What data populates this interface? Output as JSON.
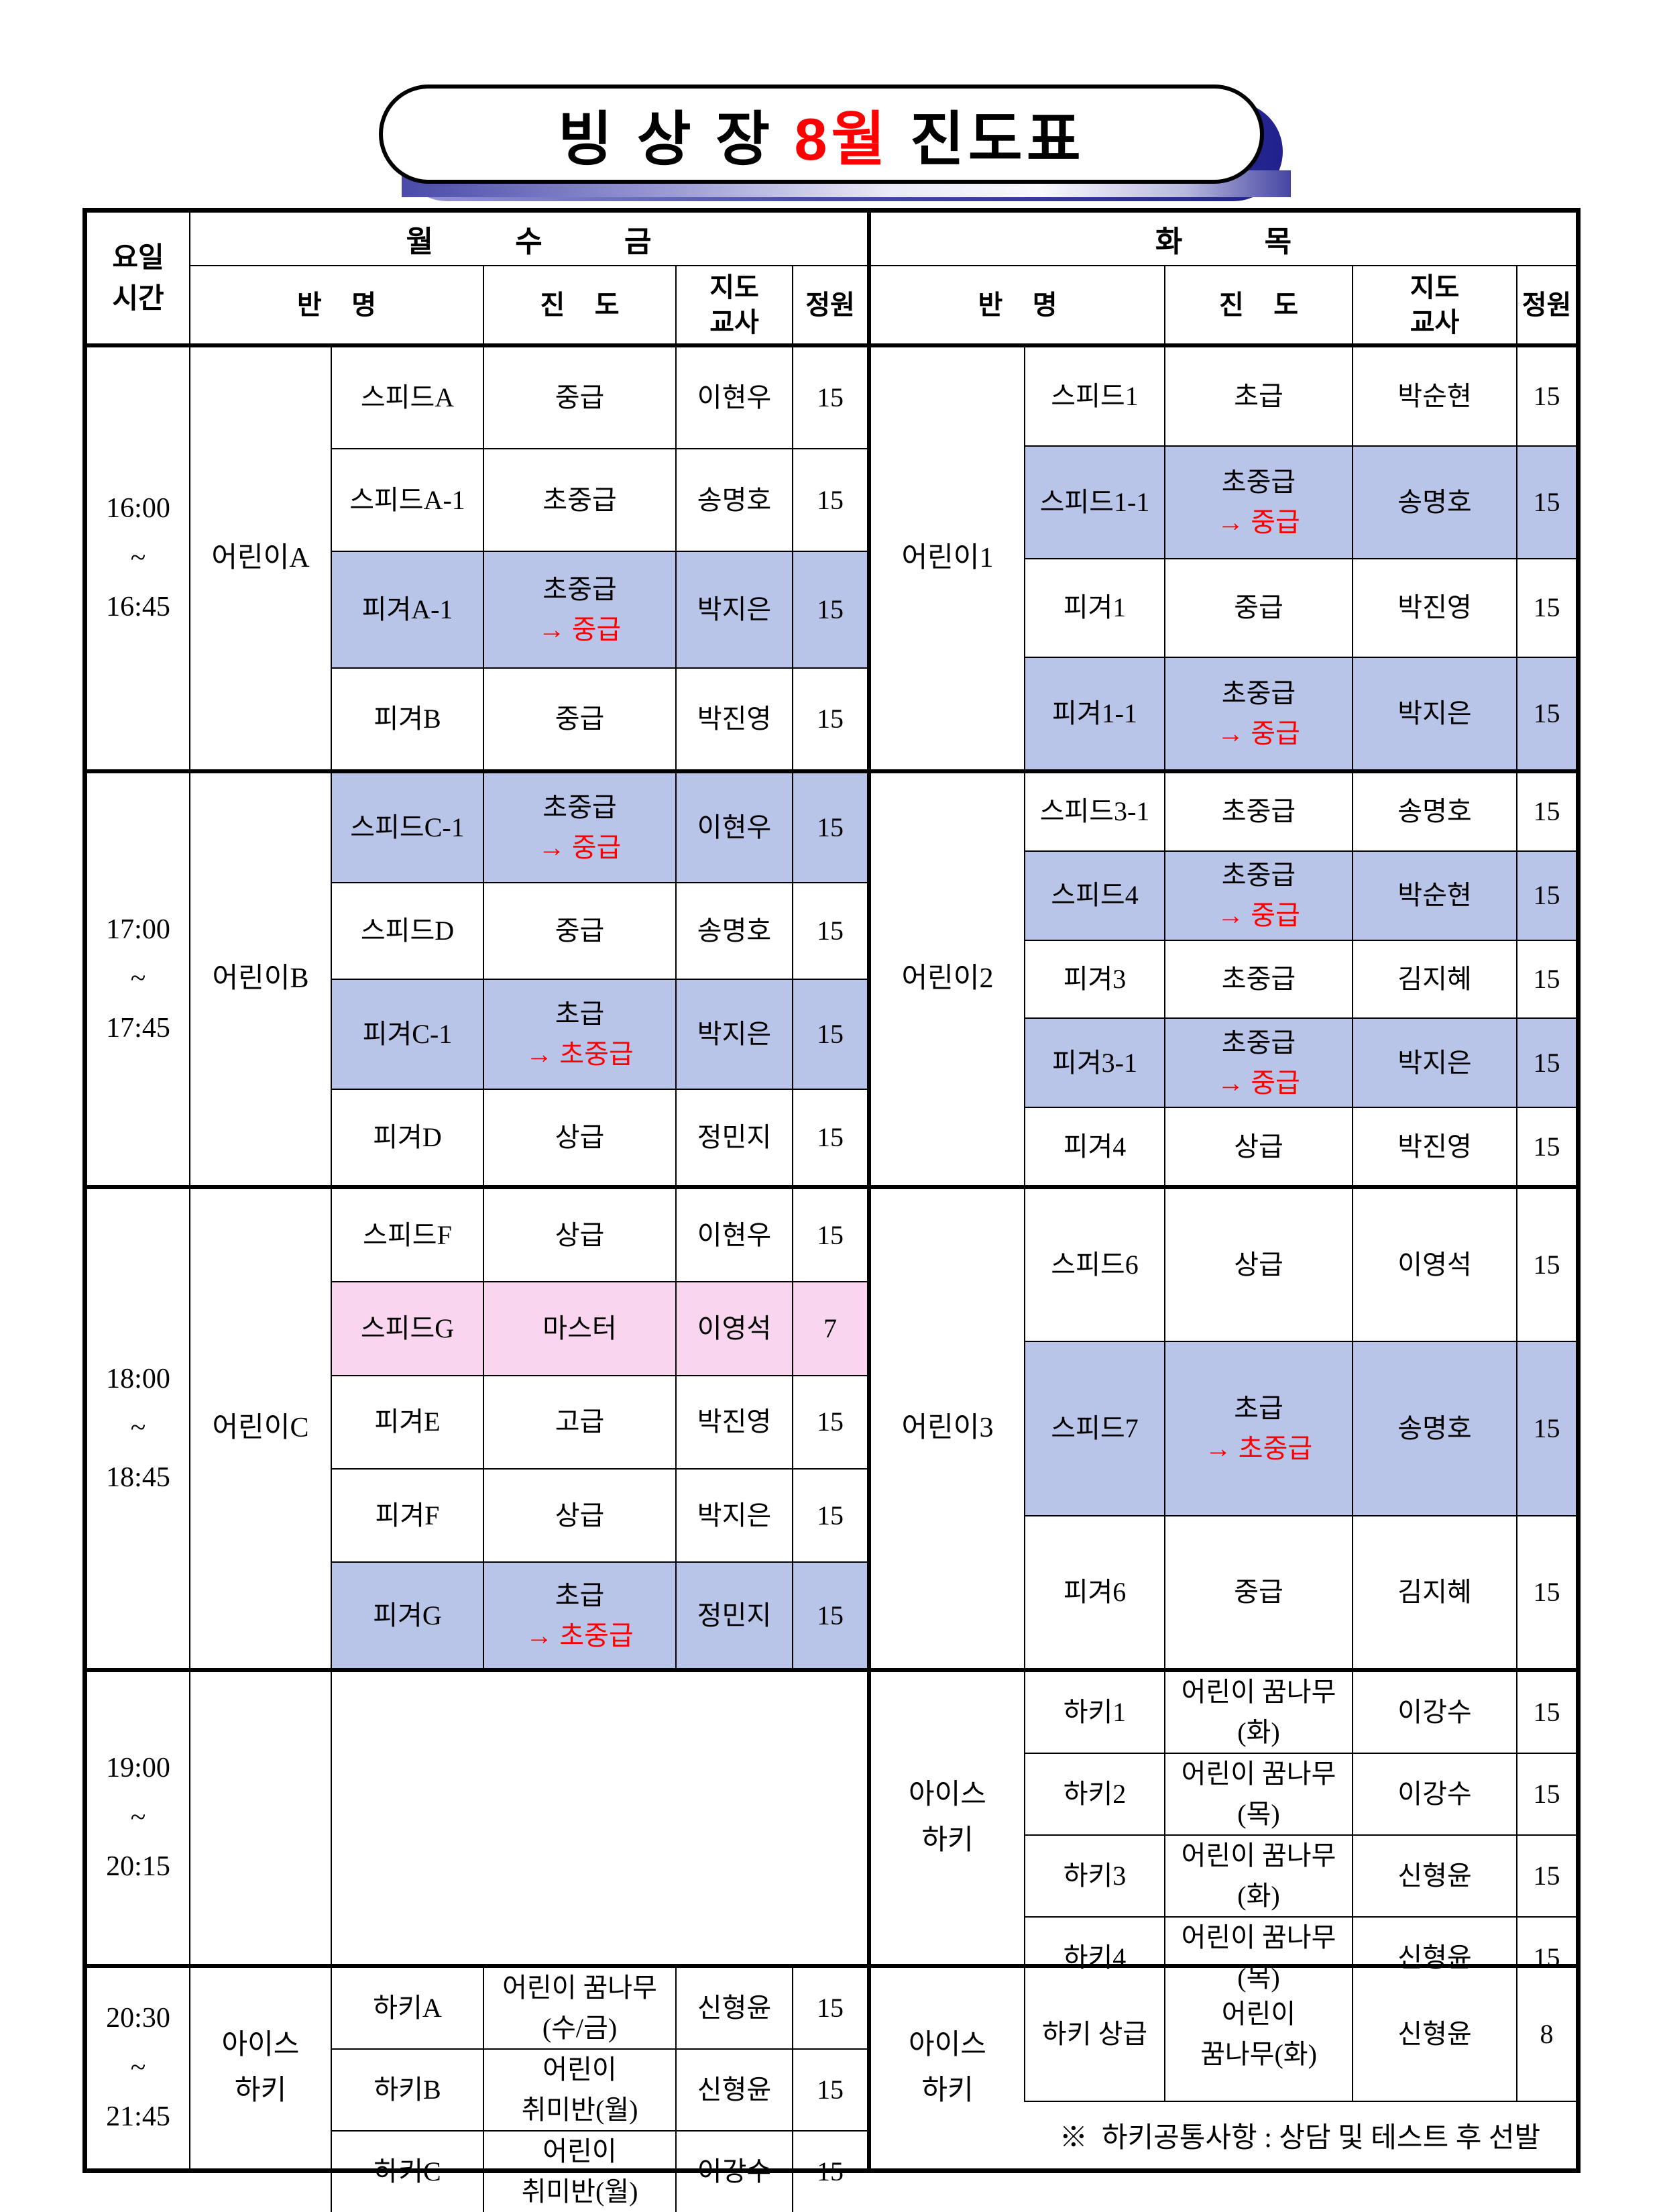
{
  "title": {
    "part1": "빙 상 장 ",
    "month": "8월",
    "part2": " 진도표"
  },
  "colors": {
    "highlight_blue": "#b9c5e8",
    "highlight_pink": "#fad5ef",
    "red": "#ff0000"
  },
  "header": {
    "corner": "요일\n시간",
    "left_days": "월          수          금",
    "right_days": "화          목",
    "col_class": "반    명",
    "col_progress": "진    도",
    "col_teacher": "지도\n교사",
    "col_capacity": "정원"
  },
  "blocks": [
    {
      "time": "16:00\n~\n16:45",
      "left": {
        "group": "어린이A",
        "rows": [
          {
            "name": "스피드A",
            "progress": "중급",
            "teacher": "이현우",
            "capacity": "15"
          },
          {
            "name": "스피드A-1",
            "progress": "초중급",
            "teacher": "송명호",
            "capacity": "15"
          },
          {
            "name": "피겨A-1",
            "progress": "초중급",
            "progress_red": "→ 중급",
            "teacher": "박지은",
            "capacity": "15",
            "bg": "blue"
          },
          {
            "name": "피겨B",
            "progress": "중급",
            "teacher": "박진영",
            "capacity": "15"
          }
        ]
      },
      "right": {
        "group": "어린이1",
        "rows": [
          {
            "name": "스피드1",
            "progress": "초급",
            "teacher": "박순현",
            "capacity": "15"
          },
          {
            "name": "스피드1-1",
            "progress": "초중급",
            "progress_red": "→ 중급",
            "teacher": "송명호",
            "capacity": "15",
            "bg": "blue"
          },
          {
            "name": "피겨1",
            "progress": "중급",
            "teacher": "박진영",
            "capacity": "15"
          },
          {
            "name": "피겨1-1",
            "progress": "초중급",
            "progress_red": "→ 중급",
            "teacher": "박지은",
            "capacity": "15",
            "bg": "blue"
          }
        ]
      }
    },
    {
      "time": "17:00\n~\n17:45",
      "left": {
        "group": "어린이B",
        "rows": [
          {
            "name": "스피드C-1",
            "progress": "초중급",
            "progress_red": "→ 중급",
            "teacher": "이현우",
            "capacity": "15",
            "bg": "blue"
          },
          {
            "name": "스피드D",
            "progress": "중급",
            "teacher": "송명호",
            "capacity": "15"
          },
          {
            "name": "피겨C-1",
            "progress": "초급",
            "progress_red": "→ 초중급",
            "teacher": "박지은",
            "capacity": "15",
            "bg": "blue"
          },
          {
            "name": "피겨D",
            "progress": "상급",
            "teacher": "정민지",
            "capacity": "15"
          }
        ]
      },
      "right": {
        "group": "어린이2",
        "rows": [
          {
            "name": "스피드3-1",
            "progress": "초중급",
            "teacher": "송명호",
            "capacity": "15"
          },
          {
            "name": "스피드4",
            "progress": "초중급",
            "progress_red": "→ 중급",
            "teacher": "박순현",
            "capacity": "15",
            "bg": "blue"
          },
          {
            "name": "피겨3",
            "progress": "초중급",
            "teacher": "김지혜",
            "capacity": "15"
          },
          {
            "name": "피겨3-1",
            "progress": "초중급",
            "progress_red": "→ 중급",
            "teacher": "박지은",
            "capacity": "15",
            "bg": "blue"
          },
          {
            "name": "피겨4",
            "progress": "상급",
            "teacher": "박진영",
            "capacity": "15"
          }
        ]
      }
    },
    {
      "time": "18:00\n~\n18:45",
      "left": {
        "group": "어린이C",
        "rows": [
          {
            "name": "스피드F",
            "progress": "상급",
            "teacher": "이현우",
            "capacity": "15"
          },
          {
            "name": "스피드G",
            "progress": "마스터",
            "teacher": "이영석",
            "capacity": "7",
            "bg": "pink"
          },
          {
            "name": "피겨E",
            "progress": "고급",
            "teacher": "박진영",
            "capacity": "15"
          },
          {
            "name": "피겨F",
            "progress": "상급",
            "teacher": "박지은",
            "capacity": "15"
          },
          {
            "name": "피겨G",
            "progress": "초급",
            "progress_red": "→ 초중급",
            "teacher": "정민지",
            "capacity": "15",
            "bg": "blue"
          }
        ]
      },
      "right": {
        "group": "어린이3",
        "rows": [
          {
            "name": "스피드6",
            "progress": "상급",
            "teacher": "이영석",
            "capacity": "15"
          },
          {
            "name": "스피드7",
            "progress": "초급",
            "progress_red": "→ 초중급",
            "teacher": "송명호",
            "capacity": "15",
            "bg": "blue"
          },
          {
            "name": "피겨6",
            "progress": "중급",
            "teacher": "김지혜",
            "capacity": "15"
          }
        ]
      }
    },
    {
      "time": "19:00\n~\n20:15",
      "left": {
        "group": "",
        "empty": true,
        "rows": []
      },
      "right": {
        "group": "아이스\n하키",
        "rows": [
          {
            "name": "하키1",
            "progress": "어린이 꿈나무",
            "progress2": "(화)",
            "teacher": "이강수",
            "capacity": "15"
          },
          {
            "name": "하키2",
            "progress": "어린이 꿈나무",
            "progress2": "(목)",
            "teacher": "이강수",
            "capacity": "15"
          },
          {
            "name": "하키3",
            "progress": "어린이 꿈나무",
            "progress2": "(화)",
            "teacher": "신형윤",
            "capacity": "15"
          },
          {
            "name": "하키4",
            "progress": "어린이 꿈나무",
            "progress2": "(목)",
            "teacher": "신형윤",
            "capacity": "15"
          }
        ]
      }
    },
    {
      "time": "20:30\n~\n21:45",
      "left": {
        "group": "아이스\n하키",
        "rows": [
          {
            "name": "하키A",
            "progress": "어린이 꿈나무",
            "progress2": "(수/금)",
            "teacher": "신형윤",
            "capacity": "15"
          },
          {
            "name": "하키B",
            "progress": "어린이",
            "progress2": "취미반(월)",
            "teacher": "신형윤",
            "capacity": "15"
          },
          {
            "name": "하키C",
            "progress": "어린이",
            "progress2": "취미반(월)",
            "teacher": "이강수",
            "capacity": "15"
          }
        ]
      },
      "right": {
        "group": "아이스\n하키",
        "rows": [
          {
            "name": "하키 상급",
            "progress": "어린이",
            "progress2": "꿈나무(화)",
            "teacher": "신형윤",
            "capacity": "8"
          }
        ],
        "note": "※  하키공통사항 : 상담 및 테스트 후 선발"
      }
    }
  ]
}
